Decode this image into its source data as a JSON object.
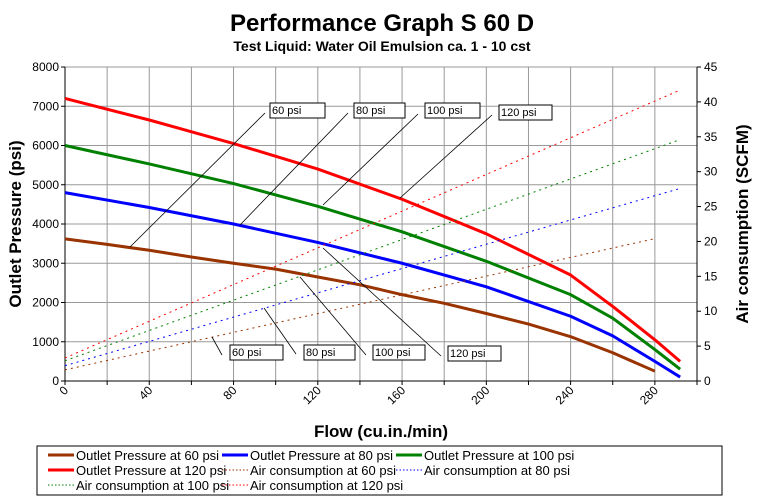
{
  "chart_data": {
    "type": "line",
    "title": "Performance Graph S 60 D",
    "subtitle": "Test Liquid: Water Oil Emulsion ca. 1 - 10 cst",
    "xlabel": "Flow (cu.in./min)",
    "ylabel": "Outlet Pressure (psi)",
    "y2label": "Air consumption (SCFM)",
    "xlim": [
      0,
      300
    ],
    "ylim": [
      0,
      8000
    ],
    "y2lim": [
      0,
      45
    ],
    "xticks": [
      "0",
      "40",
      "80",
      "120",
      "160",
      "200",
      "240",
      "280"
    ],
    "yticks": [
      "0",
      "1000",
      "2000",
      "3000",
      "4000",
      "5000",
      "6000",
      "7000",
      "8000"
    ],
    "y2ticks": [
      "0",
      "5",
      "10",
      "15",
      "20",
      "25",
      "30",
      "35",
      "40",
      "45"
    ],
    "grid": true,
    "legend_placement": "bottom",
    "series": [
      {
        "name": "Outlet Pressure at 60 psi",
        "axis": "left",
        "style": "solid",
        "color": "#993300",
        "x": [
          0,
          20,
          40,
          60,
          80,
          100,
          120,
          140,
          160,
          180,
          200,
          220,
          240,
          260,
          280
        ],
        "y": [
          3620,
          3480,
          3330,
          3160,
          3000,
          2850,
          2650,
          2450,
          2200,
          1980,
          1720,
          1450,
          1130,
          720,
          250
        ]
      },
      {
        "name": "Outlet Pressure at 80 psi",
        "axis": "left",
        "style": "solid",
        "color": "#0000ff",
        "x": [
          0,
          40,
          80,
          120,
          160,
          200,
          240,
          260,
          280,
          292
        ],
        "y": [
          4800,
          4420,
          4000,
          3530,
          3000,
          2400,
          1650,
          1150,
          500,
          100
        ]
      },
      {
        "name": "Outlet Pressure at 100 psi",
        "axis": "left",
        "style": "solid",
        "color": "#008000",
        "x": [
          0,
          40,
          80,
          120,
          160,
          200,
          240,
          260,
          280,
          292
        ],
        "y": [
          6000,
          5530,
          5030,
          4450,
          3800,
          3050,
          2200,
          1600,
          800,
          300
        ]
      },
      {
        "name": "Outlet Pressure at 120 psi",
        "axis": "left",
        "style": "solid",
        "color": "#ff0000",
        "x": [
          0,
          40,
          80,
          120,
          160,
          200,
          240,
          260,
          280,
          292
        ],
        "y": [
          7200,
          6650,
          6050,
          5400,
          4630,
          3750,
          2700,
          1900,
          1050,
          500
        ]
      },
      {
        "name": "Air consumption at 60 psi",
        "axis": "right",
        "style": "dotted",
        "color": "#993300",
        "x": [
          0,
          280
        ],
        "y": [
          1.6,
          20.4
        ]
      },
      {
        "name": "Air consumption at 80 psi",
        "axis": "right",
        "style": "dotted",
        "color": "#0000ff",
        "x": [
          0,
          292
        ],
        "y": [
          2.2,
          27.6
        ]
      },
      {
        "name": "Air consumption at 100 psi",
        "axis": "right",
        "style": "dotted",
        "color": "#008000",
        "x": [
          0,
          292
        ],
        "y": [
          2.9,
          34.6
        ]
      },
      {
        "name": "Air consumption at 120 psi",
        "axis": "right",
        "style": "dotted",
        "color": "#ff0000",
        "x": [
          0,
          292
        ],
        "y": [
          3.3,
          41.7
        ]
      }
    ],
    "annotations": {
      "pressure": [
        "60 psi",
        "80 psi",
        "100 psi",
        "120 psi"
      ],
      "air": [
        "60 psi",
        "80 psi",
        "100 psi",
        "120 psi"
      ]
    }
  }
}
